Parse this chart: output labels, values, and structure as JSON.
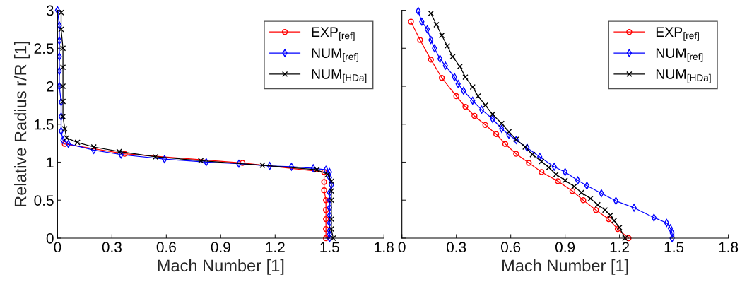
{
  "chart_data": [
    {
      "type": "line",
      "xlabel": "Mach Number [1]",
      "ylabel": "Relative Radius r/R [1]",
      "xlim": [
        0,
        1.8
      ],
      "xticks": [
        0,
        0.3,
        0.6,
        0.9,
        1.2,
        1.5,
        1.8
      ],
      "ylim": [
        0,
        3
      ],
      "yticks": [
        0,
        0.5,
        1,
        1.5,
        2,
        2.5,
        3
      ],
      "grid": false,
      "legend": "top right",
      "series": [
        {
          "name": "EXP$_{[ref]}$",
          "color": "#ff0000",
          "marker": "circle",
          "x": [
            1.48,
            1.48,
            1.48,
            1.48,
            1.48,
            1.47,
            1.47,
            1.47,
            1.02,
            0.37,
            0.04
          ],
          "values": [
            0,
            0.12,
            0.25,
            0.37,
            0.5,
            0.63,
            0.74,
            0.87,
            0.99,
            1.11,
            1.24
          ]
        },
        {
          "name": "NUM$_{[ref]}$",
          "color": "#0000ff",
          "marker": "diamond",
          "x": [
            1.5,
            1.5,
            1.5,
            1.5,
            1.5,
            1.5,
            1.5,
            1.5,
            1.51,
            1.5,
            1.5,
            1.48,
            1.41,
            1.29,
            1.17,
            1.0,
            0.82,
            0.59,
            0.35,
            0.2,
            0.06,
            0.03,
            0.02,
            0.02,
            0.02,
            0.01,
            0.01,
            0.01,
            0.01,
            0.01,
            0.0
          ],
          "values": [
            0,
            0.05,
            0.1,
            0.2,
            0.3,
            0.4,
            0.5,
            0.6,
            0.7,
            0.8,
            0.87,
            0.9,
            0.92,
            0.94,
            0.95,
            0.98,
            1.0,
            1.04,
            1.1,
            1.16,
            1.24,
            1.29,
            1.41,
            1.6,
            1.79,
            2.0,
            2.2,
            2.39,
            2.6,
            2.8,
            3.0
          ]
        },
        {
          "name": "NUM$_{[HDa]}$",
          "color": "#000000",
          "marker": "cross",
          "x": [
            1.52,
            1.51,
            1.51,
            1.51,
            1.51,
            1.51,
            1.49,
            1.43,
            1.13,
            0.79,
            0.54,
            0.34,
            0.2,
            0.11,
            0.05,
            0.04,
            0.03,
            0.03,
            0.03,
            0.03,
            0.03,
            0.02,
            0.02
          ],
          "values": [
            0,
            0.12,
            0.25,
            0.5,
            0.62,
            0.75,
            0.84,
            0.9,
            0.96,
            1.02,
            1.07,
            1.14,
            1.2,
            1.26,
            1.32,
            1.44,
            1.6,
            1.8,
            2.0,
            2.25,
            2.5,
            2.75,
            2.97
          ]
        }
      ]
    },
    {
      "type": "line",
      "xlabel": "Mach Number [1]",
      "xlim": [
        0,
        1.8
      ],
      "xticks": [
        0,
        0.3,
        0.6,
        0.9,
        1.2,
        1.5,
        1.8
      ],
      "ylim": [
        0,
        3
      ],
      "yticks": [
        0,
        0.5,
        1,
        1.5,
        2,
        2.5,
        3
      ],
      "tick_labels": "x",
      "grid": false,
      "legend": "top right",
      "series": [
        {
          "name": "EXP$_{[ref]}$",
          "color": "#ff0000",
          "marker": "circle",
          "x": [
            0.05,
            0.1,
            0.16,
            0.22,
            0.3,
            0.35,
            0.4,
            0.46,
            0.52,
            0.57,
            0.63,
            0.7,
            0.77,
            0.86,
            0.94,
            1.0,
            1.07,
            1.14,
            1.19,
            1.25
          ],
          "values": [
            2.85,
            2.61,
            2.35,
            2.11,
            1.87,
            1.73,
            1.61,
            1.49,
            1.37,
            1.24,
            1.11,
            0.99,
            0.87,
            0.75,
            0.62,
            0.5,
            0.37,
            0.25,
            0.12,
            0
          ]
        },
        {
          "name": "NUM$_{[ref]}$",
          "color": "#0000ff",
          "marker": "diamond",
          "x": [
            0.09,
            0.11,
            0.14,
            0.16,
            0.18,
            0.21,
            0.24,
            0.29,
            0.31,
            0.34,
            0.39,
            0.44,
            0.5,
            0.55,
            0.59,
            0.63,
            0.69,
            0.76,
            0.84,
            0.9,
            0.97,
            1.02,
            1.1,
            1.18,
            1.28,
            1.39,
            1.46,
            1.48,
            1.49,
            1.49
          ],
          "values": [
            2.99,
            2.85,
            2.75,
            2.61,
            2.5,
            2.36,
            2.27,
            2.12,
            2.03,
            1.94,
            1.81,
            1.69,
            1.57,
            1.44,
            1.36,
            1.29,
            1.19,
            1.07,
            0.94,
            0.87,
            0.76,
            0.69,
            0.59,
            0.49,
            0.4,
            0.27,
            0.2,
            0.13,
            0.07,
            0
          ]
        },
        {
          "name": "NUM$_{[HDa]}$",
          "color": "#000000",
          "marker": "cross",
          "x": [
            0.16,
            0.19,
            0.22,
            0.25,
            0.28,
            0.32,
            0.35,
            0.39,
            0.42,
            0.46,
            0.5,
            0.55,
            0.59,
            0.63,
            0.68,
            0.72,
            0.77,
            0.81,
            0.85,
            0.9,
            0.95,
            0.99,
            1.04,
            1.08,
            1.12,
            1.15,
            1.17,
            1.2,
            1.23
          ],
          "values": [
            2.96,
            2.81,
            2.67,
            2.53,
            2.39,
            2.26,
            2.12,
            1.99,
            1.87,
            1.75,
            1.63,
            1.51,
            1.4,
            1.3,
            1.2,
            1.1,
            1.01,
            0.93,
            0.84,
            0.76,
            0.68,
            0.6,
            0.52,
            0.44,
            0.37,
            0.3,
            0.23,
            0.14,
            0
          ]
        }
      ]
    }
  ]
}
